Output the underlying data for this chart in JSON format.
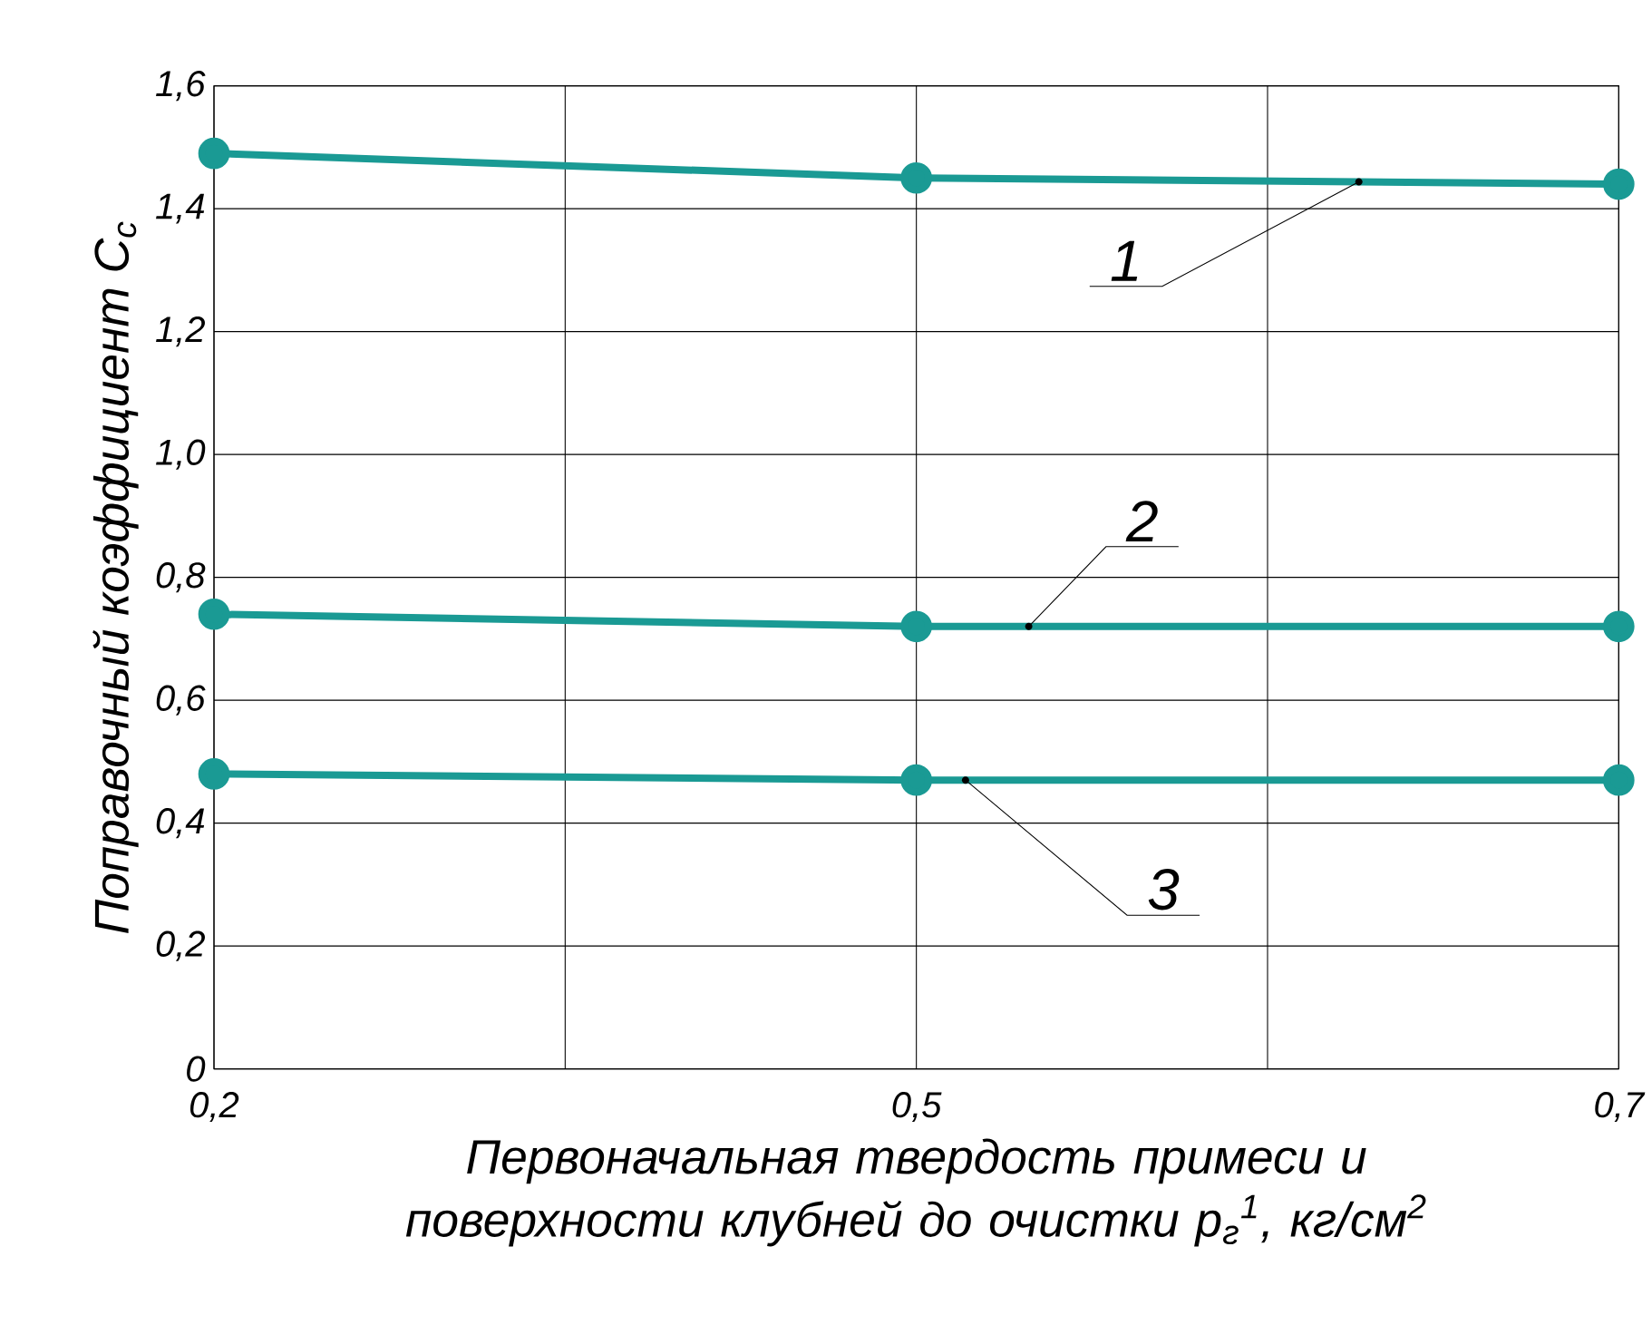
{
  "chart_data": {
    "type": "line",
    "xlabel": "Первоначальная твердость примеси и поверхности клубней до очистки p$_{г}$$^{1}$, кг/см$^{2}$",
    "ylabel": "Поправочный коэффициент C$_{c}$",
    "categories": [
      "0,2",
      "0,5",
      "0,7"
    ],
    "series": [
      {
        "name": "1",
        "color": "#1a9a94",
        "values": [
          1.49,
          1.45,
          1.44
        ]
      },
      {
        "name": "2",
        "color": "#1a9a94",
        "values": [
          0.74,
          0.72,
          0.72
        ]
      },
      {
        "name": "3",
        "color": "#1a9a94",
        "values": [
          0.48,
          0.47,
          0.47
        ]
      }
    ],
    "ylim": [
      0,
      1.6
    ],
    "yticks": [
      {
        "value": 0,
        "label": "0"
      },
      {
        "value": 0.2,
        "label": "0,2"
      },
      {
        "value": 0.4,
        "label": "0,4"
      },
      {
        "value": 0.6,
        "label": "0,6"
      },
      {
        "value": 0.8,
        "label": "0,8"
      },
      {
        "value": 1.0,
        "label": "1,0"
      },
      {
        "value": 1.2,
        "label": "1,2"
      },
      {
        "value": 1.4,
        "label": "1,4"
      },
      {
        "value": 1.6,
        "label": "1,6"
      }
    ],
    "grid": true,
    "marker": "circle",
    "line_style": "solid"
  }
}
